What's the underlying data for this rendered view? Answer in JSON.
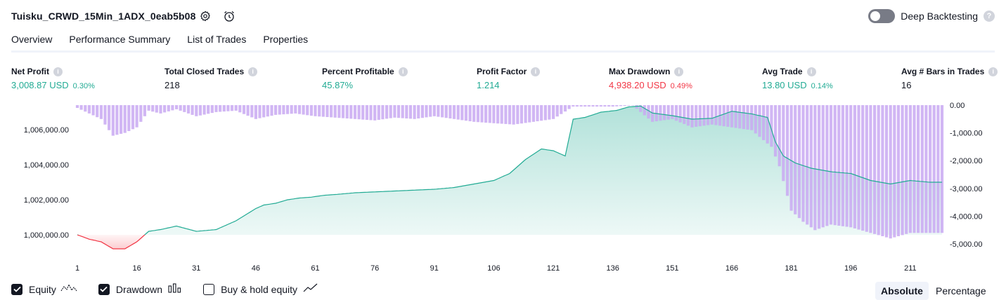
{
  "header": {
    "strategy_name": "Tuisku_CRWD_15Min_1ADX_0eab5b08",
    "settings_icon": "gear-icon",
    "alert_icon": "alarm-clock-add-icon",
    "deep_backtesting_label": "Deep Backtesting",
    "deep_backtesting_enabled": false,
    "help_glyph": "?"
  },
  "tabs": [
    {
      "label": "Overview",
      "active": true
    },
    {
      "label": "Performance Summary",
      "active": false
    },
    {
      "label": "List of Trades",
      "active": false
    },
    {
      "label": "Properties",
      "active": false
    }
  ],
  "metrics": [
    {
      "label": "Net Profit",
      "value": "3,008.87 USD",
      "pct": "0.30%",
      "color": "#22ab94"
    },
    {
      "label": "Total Closed Trades",
      "value": "218",
      "pct": "",
      "color": "#131722"
    },
    {
      "label": "Percent Profitable",
      "value": "45.87%",
      "pct": "",
      "color": "#22ab94"
    },
    {
      "label": "Profit Factor",
      "value": "1.214",
      "pct": "",
      "color": "#22ab94"
    },
    {
      "label": "Max Drawdown",
      "value": "4,938.20 USD",
      "pct": "0.49%",
      "color": "#f23645"
    },
    {
      "label": "Avg Trade",
      "value": "13.80 USD",
      "pct": "0.14%",
      "color": "#22ab94"
    },
    {
      "label": "Avg # Bars in Trades",
      "value": "16",
      "pct": "",
      "color": "#131722"
    }
  ],
  "chart_data": {
    "type": "line",
    "title": "",
    "xlabel": "",
    "ylabel": "",
    "x_ticks": [
      "1",
      "16",
      "31",
      "46",
      "61",
      "76",
      "91",
      "106",
      "121",
      "136",
      "151",
      "166",
      "181",
      "196",
      "211"
    ],
    "xlim": [
      1,
      219
    ],
    "y_left_ticks": [
      "1,000,000.00",
      "1,002,000.00",
      "1,004,000.00",
      "1,006,000.00"
    ],
    "ylim_left": [
      999000,
      1007400
    ],
    "y_right_ticks": [
      "0.00",
      "-1,000.00",
      "-2,000.00",
      "-3,000.00",
      "-4,000.00",
      "-5,000.00"
    ],
    "ylim_right": [
      -5300,
      0
    ],
    "grid": false,
    "baseline": 1000000,
    "colors": {
      "equity_up": "#22ab94",
      "equity_down": "#f23645",
      "drawdown": "#c9a9f2"
    },
    "series": [
      {
        "name": "Equity",
        "x": [
          1,
          4,
          7,
          10,
          13,
          16,
          19,
          22,
          26,
          31,
          36,
          41,
          46,
          48,
          51,
          54,
          57,
          60,
          63,
          66,
          71,
          76,
          81,
          86,
          91,
          96,
          101,
          106,
          110,
          114,
          118,
          121,
          124,
          126,
          129,
          133,
          137,
          140,
          143,
          146,
          151,
          156,
          161,
          166,
          171,
          175,
          177,
          179,
          182,
          186,
          191,
          196,
          201,
          206,
          211,
          216,
          219
        ],
        "values": [
          1000000,
          999750,
          999600,
          999200,
          999200,
          999600,
          1000200,
          1000300,
          1000500,
          1000200,
          1000300,
          1000800,
          1001500,
          1001700,
          1001800,
          1002000,
          1002100,
          1002150,
          1002250,
          1002300,
          1002400,
          1002450,
          1002500,
          1002550,
          1002600,
          1002700,
          1002900,
          1003100,
          1003500,
          1004300,
          1004900,
          1004800,
          1004500,
          1006600,
          1006700,
          1007000,
          1007100,
          1007300,
          1007350,
          1006950,
          1006800,
          1006600,
          1006650,
          1007050,
          1006900,
          1006700,
          1005300,
          1004500,
          1004100,
          1003800,
          1003600,
          1003500,
          1003100,
          1002900,
          1003100,
          1003000,
          1003000
        ]
      },
      {
        "name": "Drawdown",
        "x": [
          1,
          4,
          7,
          10,
          13,
          16,
          19,
          22,
          26,
          31,
          36,
          41,
          46,
          51,
          56,
          61,
          66,
          71,
          76,
          81,
          86,
          91,
          96,
          101,
          106,
          111,
          116,
          121,
          126,
          131,
          136,
          141,
          146,
          151,
          156,
          161,
          166,
          171,
          176,
          178,
          181,
          184,
          187,
          191,
          196,
          201,
          206,
          211,
          216,
          219
        ],
        "values": [
          -100,
          -300,
          -500,
          -1100,
          -1000,
          -800,
          -200,
          -300,
          -150,
          -400,
          -250,
          -200,
          -500,
          -350,
          -300,
          -400,
          -450,
          -500,
          -550,
          -450,
          -500,
          -400,
          -500,
          -600,
          -650,
          -700,
          -600,
          -500,
          -50,
          -50,
          -50,
          -10,
          -600,
          -500,
          -800,
          -700,
          -800,
          -900,
          -1500,
          -2200,
          -3800,
          -4200,
          -4500,
          -4300,
          -4400,
          -4600,
          -4800,
          -4600,
          -4600,
          -4600
        ]
      }
    ]
  },
  "legend": {
    "items": [
      {
        "label": "Equity",
        "checked": true,
        "icon": "equity-line-icon"
      },
      {
        "label": "Drawdown",
        "checked": true,
        "icon": "bars-icon"
      },
      {
        "label": "Buy & hold equity",
        "checked": false,
        "icon": "trend-line-icon"
      }
    ],
    "modes": [
      {
        "label": "Absolute",
        "active": true
      },
      {
        "label": "Percentage",
        "active": false
      }
    ]
  }
}
